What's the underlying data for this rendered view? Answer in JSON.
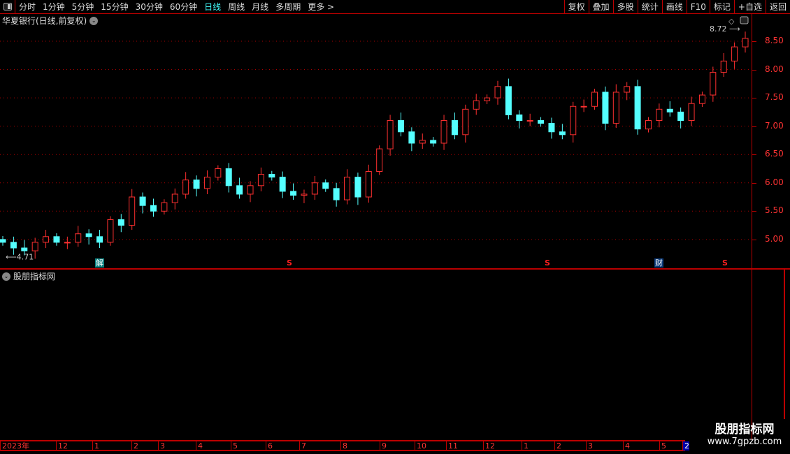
{
  "toolbar": {
    "periods": [
      "分时",
      "1分钟",
      "5分钟",
      "15分钟",
      "30分钟",
      "60分钟",
      "日线",
      "周线",
      "月线",
      "多周期",
      "更多 >"
    ],
    "active": "日线",
    "buttons": [
      "复权",
      "叠加",
      "多股",
      "统计",
      "画线",
      "F10",
      "标记",
      "+自选",
      "返回"
    ]
  },
  "chart": {
    "title": "华夏银行(日线,前复权)",
    "high_label": "8.72",
    "low_label": "4.71",
    "y_ticks": [
      "8.50",
      "8.00",
      "7.50",
      "7.00",
      "6.50",
      "6.00",
      "5.50",
      "5.00"
    ],
    "markers": [
      {
        "text": "解",
        "color": "#0a8080"
      },
      {
        "text": "S",
        "color": "#ff2020"
      },
      {
        "text": "S",
        "color": "#ff2020"
      },
      {
        "text": "财",
        "color": "#0a3a7a"
      },
      {
        "text": "S",
        "color": "#ff2020"
      }
    ]
  },
  "sub": {
    "title": "股朋指标网"
  },
  "dates": [
    "2023年",
    "12",
    "1",
    "2",
    "3",
    "4",
    "5",
    "6",
    "7",
    "8",
    "9",
    "10",
    "11",
    "12",
    "1",
    "2",
    "3",
    "4",
    "5",
    "2"
  ],
  "watermark": {
    "name": "股朋指标网",
    "url": "www.7gpzb.com"
  },
  "colors": {
    "up": "#ff3030",
    "down": "#54ffff",
    "grid": "#b00000"
  },
  "chart_data": {
    "type": "candlestick",
    "ylim": [
      4.6,
      8.8
    ],
    "y_ticks": [
      5.0,
      5.5,
      6.0,
      6.5,
      7.0,
      7.5,
      8.0,
      8.5
    ],
    "high": 8.72,
    "low": 4.71,
    "closes": [
      4.95,
      4.85,
      4.8,
      4.95,
      5.05,
      4.95,
      4.95,
      5.1,
      5.05,
      4.95,
      5.35,
      5.25,
      5.75,
      5.6,
      5.5,
      5.65,
      5.8,
      6.05,
      5.9,
      6.1,
      6.25,
      5.95,
      5.8,
      5.95,
      6.15,
      6.1,
      5.85,
      5.78,
      5.8,
      6.0,
      5.9,
      5.7,
      6.1,
      5.75,
      6.2,
      6.6,
      7.1,
      6.9,
      6.7,
      6.75,
      6.7,
      7.1,
      6.85,
      7.3,
      7.45,
      7.5,
      7.7,
      7.2,
      7.1,
      7.1,
      7.05,
      6.9,
      6.85,
      7.35,
      7.35,
      7.6,
      7.05,
      7.6,
      7.7,
      6.95,
      7.1,
      7.3,
      7.25,
      7.1,
      7.4,
      7.55,
      7.95,
      8.15,
      8.4,
      8.55
    ]
  }
}
